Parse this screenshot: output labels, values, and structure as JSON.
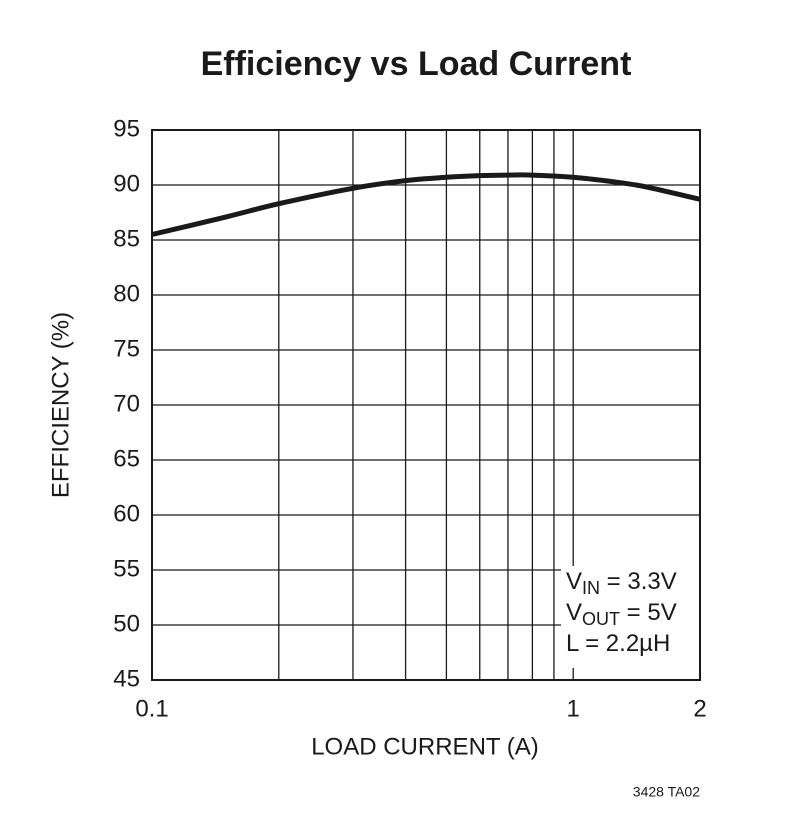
{
  "chart_data": {
    "type": "line",
    "title": "Efficiency vs Load Current",
    "xlabel": "LOAD CURRENT (A)",
    "ylabel": "EFFICIENCY (%)",
    "x": [
      0.1,
      0.15,
      0.2,
      0.3,
      0.4,
      0.5,
      0.6,
      0.7,
      0.8,
      1,
      1.3,
      1.5,
      2
    ],
    "series": [
      {
        "name": "Efficiency",
        "color": "#1a1a1a",
        "values": [
          85.5,
          87.1,
          88.3,
          89.7,
          90.4,
          90.7,
          90.85,
          90.9,
          90.9,
          90.7,
          90.2,
          89.8,
          88.7
        ]
      }
    ],
    "xscale": "log",
    "xlim": [
      0.1,
      2
    ],
    "xticks": [
      0.1,
      1,
      2
    ],
    "xgrid": [
      0.2,
      0.3,
      0.4,
      0.5,
      0.6,
      0.7,
      0.8,
      0.9,
      1
    ],
    "ylim": [
      45,
      95
    ],
    "yticks": [
      45,
      50,
      55,
      60,
      65,
      70,
      75,
      80,
      85,
      90,
      95
    ],
    "grid": true,
    "annotations": [
      {
        "main": "V",
        "sub": "IN",
        "rest": " = 3.3V"
      },
      {
        "main": "V",
        "sub": "OUT",
        "rest": " = 5V"
      },
      {
        "main": "L = 2.2µH"
      }
    ],
    "footnote": "3428 TA02"
  }
}
